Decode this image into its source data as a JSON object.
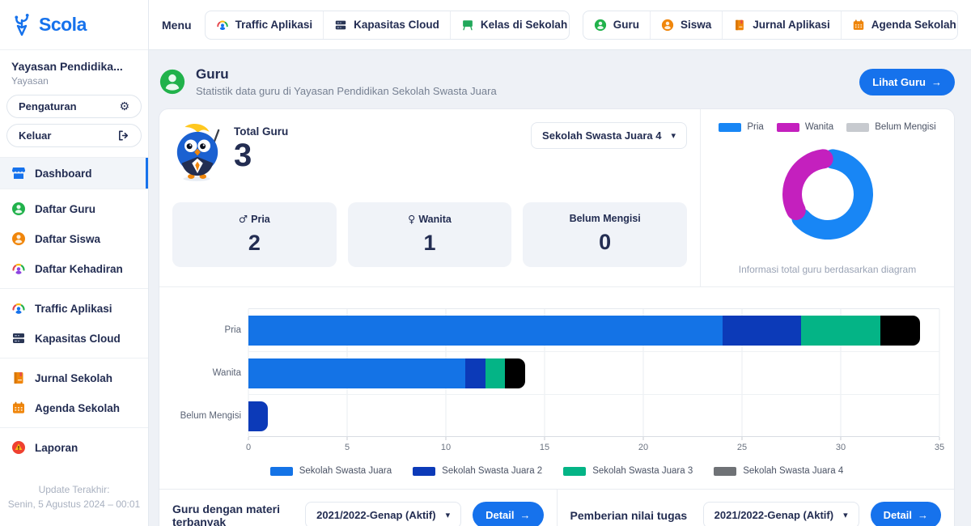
{
  "icons": {
    "arrow_right": "→",
    "caret_down": "▾",
    "gear": "⚙"
  },
  "sidebar": {
    "logo_text": "Scola",
    "org": {
      "name": "Yayasan Pendidika...",
      "type": "Yayasan"
    },
    "actions": {
      "settings": "Pengaturan",
      "logout": "Keluar"
    },
    "nav": [
      {
        "label": "Dashboard",
        "icon": "storefront-icon",
        "active": true
      },
      {
        "label": "Daftar Guru",
        "icon": "teacher-icon"
      },
      {
        "label": "Daftar Siswa",
        "icon": "student-icon"
      },
      {
        "label": "Daftar Kehadiran",
        "icon": "attendance-icon"
      },
      {
        "label": "Traffic Aplikasi",
        "icon": "traffic-icon"
      },
      {
        "label": "Kapasitas Cloud",
        "icon": "server-icon"
      },
      {
        "label": "Jurnal Sekolah",
        "icon": "journal-icon"
      },
      {
        "label": "Agenda Sekolah",
        "icon": "calendar-icon"
      },
      {
        "label": "Laporan",
        "icon": "report-icon"
      }
    ],
    "update_label": "Update Terakhir:",
    "update_value": "Senin, 5 Agustus 2024 – 00:01"
  },
  "topbar": {
    "menu_label": "Menu",
    "group1": [
      "Traffic Aplikasi",
      "Kapasitas Cloud",
      "Kelas di Sekolah"
    ],
    "group2": [
      "Guru",
      "Siswa",
      "Jurnal Aplikasi",
      "Agenda Sekolah"
    ]
  },
  "header": {
    "title": "Guru",
    "subtitle": "Statistik data guru di Yayasan Pendidikan Sekolah Swasta Juara",
    "action_label": "Lihat Guru"
  },
  "summary": {
    "total_label": "Total Guru",
    "total_value": "3",
    "school_filter": "Sekolah Swasta Juara 4",
    "stats": [
      {
        "symbol": "♂",
        "label": "Pria",
        "value": "2"
      },
      {
        "symbol": "♀",
        "label": "Wanita",
        "value": "1"
      },
      {
        "symbol": "",
        "label": "Belum Mengisi",
        "value": "0"
      }
    ]
  },
  "chart_data": [
    {
      "type": "pie",
      "subtype": "donut",
      "categories": [
        "Pria",
        "Wanita",
        "Belum Mengisi"
      ],
      "values": [
        2,
        1,
        0
      ],
      "colors": [
        "#1886F5",
        "#C420BE",
        "#C7CACF"
      ],
      "legend_position": "top",
      "caption": "Informasi total guru berdasarkan diagram"
    },
    {
      "type": "bar",
      "subtype": "horizontal_stacked",
      "categories": [
        "Pria",
        "Wanita",
        "Belum Mengisi"
      ],
      "series": [
        {
          "name": "Sekolah Swasta Juara",
          "color": "#1473E6",
          "values": [
            24,
            11,
            0
          ]
        },
        {
          "name": "Sekolah Swasta Juara 2",
          "color": "#0C3AB8",
          "values": [
            4,
            1,
            1
          ]
        },
        {
          "name": "Sekolah Swasta Juara 3",
          "color": "#04B486",
          "values": [
            4,
            1,
            0
          ]
        },
        {
          "name": "Sekolah Swasta Juara 4",
          "color": "#000000",
          "legend_color": "#6F7276",
          "values": [
            2,
            1,
            0
          ]
        }
      ],
      "xlim": [
        0,
        35
      ],
      "x_ticks": [
        0,
        5,
        10,
        15,
        20,
        25,
        30,
        35
      ],
      "grid": true,
      "legend_position": "bottom"
    }
  ],
  "footer": {
    "left": {
      "label": "Guru dengan materi terbanyak",
      "filter": "2021/2022-Genap (Aktif)",
      "action": "Detail"
    },
    "right": {
      "label": "Pemberian nilai tugas",
      "filter": "2021/2022-Genap (Aktif)",
      "action": "Detail"
    }
  }
}
